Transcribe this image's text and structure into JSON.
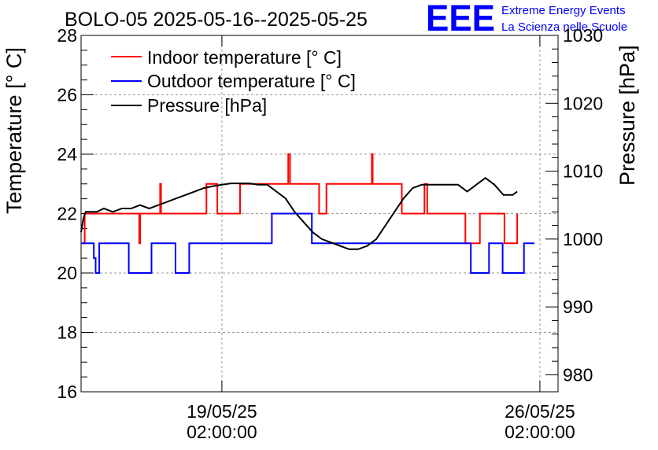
{
  "logo": {
    "text": "EEE",
    "line1": "Extreme Energy Events",
    "line2": "La Scienza nelle Scuole",
    "color": "#0000ff"
  },
  "chart_data": {
    "type": "line",
    "title": "BOLO-05 2025-05-16--2025-05-25",
    "ylabel": "Temperature [° C]",
    "y2label": "Pressure [hPa]",
    "ylim": [
      16,
      28
    ],
    "y2lim": [
      977.5,
      1030
    ],
    "xlim_days": [
      0,
      10.5
    ],
    "x_unit": "days since 2025-05-16",
    "yticks": [
      16,
      18,
      20,
      22,
      24,
      26,
      28
    ],
    "y2ticks": [
      980,
      990,
      1000,
      1010,
      1020,
      1030
    ],
    "xticks": [
      {
        "x": 3.1,
        "date": "19/05/25",
        "time": "02:00:00"
      },
      {
        "x": 10.1,
        "date": "26/05/25",
        "time": "02:00:00"
      }
    ],
    "grid": true,
    "legend_position": "top-left",
    "series": [
      {
        "name": "Indoor temperature [° C]",
        "axis": "left",
        "color": "#ff0000",
        "step": true,
        "x": [
          0,
          0.08,
          0.32,
          0.8,
          1.26,
          1.28,
          1.3,
          1.32,
          1.74,
          1.76,
          2.26,
          2.3,
          2.74,
          2.76,
          3.0,
          3.28,
          3.5,
          4.0,
          4.2,
          4.56,
          4.6,
          4.64,
          4.7,
          5.24,
          5.26,
          5.4,
          6.38,
          6.4,
          6.42,
          6.46,
          7.06,
          7.16,
          7.5,
          7.56,
          7.62,
          7.72,
          8.2,
          8.24,
          8.46,
          8.78,
          9.0,
          9.32,
          9.6
        ],
        "y": [
          21,
          22,
          22,
          22,
          22,
          21,
          22,
          22,
          23,
          22,
          22,
          22,
          22,
          23,
          22,
          22,
          23,
          23,
          23,
          24,
          23,
          23,
          23,
          22,
          22,
          23,
          23,
          24,
          23,
          23,
          22,
          22,
          22,
          23,
          22,
          22,
          22,
          22,
          21,
          22,
          22,
          21,
          22
        ]
      },
      {
        "name": "Outdoor temperature [° C]",
        "axis": "left",
        "color": "#0000ff",
        "step": true,
        "x": [
          0,
          0.28,
          0.32,
          0.4,
          0.5,
          1.05,
          1.4,
          1.55,
          2.08,
          2.38,
          2.55,
          3.5,
          4.2,
          4.5,
          4.65,
          5.08,
          5.1,
          6.98,
          7.2,
          8.2,
          8.58,
          8.98,
          9.28,
          9.75,
          9.98
        ],
        "y": [
          21,
          20.5,
          20,
          21,
          21,
          20,
          20,
          21,
          20,
          21,
          21,
          21,
          22,
          22,
          22,
          21,
          21,
          21,
          21,
          21,
          20,
          21,
          20,
          21,
          21
        ]
      },
      {
        "name": "Pressure [hPa]",
        "axis": "right",
        "color": "#000000",
        "step": false,
        "x": [
          0,
          0.05,
          0.1,
          0.2,
          0.35,
          0.5,
          0.7,
          0.9,
          1.1,
          1.3,
          1.5,
          1.7,
          1.9,
          2.1,
          2.3,
          2.5,
          2.7,
          2.9,
          3.1,
          3.3,
          3.5,
          3.7,
          3.9,
          4.1,
          4.3,
          4.5,
          4.7,
          4.9,
          5.1,
          5.3,
          5.5,
          5.7,
          5.9,
          6.1,
          6.3,
          6.5,
          6.7,
          6.9,
          7.1,
          7.3,
          7.5,
          7.7,
          7.9,
          8.1,
          8.3,
          8.5,
          8.7,
          8.9,
          9.1,
          9.3,
          9.5,
          9.6
        ],
        "y": [
          1001,
          1003,
          1004,
          1004,
          1004,
          1004.5,
          1004,
          1004.5,
          1004.5,
          1005,
          1004.5,
          1005,
          1005.5,
          1006,
          1006.5,
          1007,
          1007.5,
          1007.8,
          1008,
          1008.2,
          1008.2,
          1008.2,
          1008,
          1008,
          1007,
          1006,
          1004,
          1002.5,
          1001,
          1000,
          999.5,
          999,
          998.5,
          998.5,
          999,
          1000,
          1002,
          1004,
          1006,
          1007.5,
          1008,
          1008,
          1008,
          1008,
          1008,
          1007,
          1008,
          1009,
          1008,
          1006.5,
          1006.5,
          1007
        ]
      }
    ]
  }
}
